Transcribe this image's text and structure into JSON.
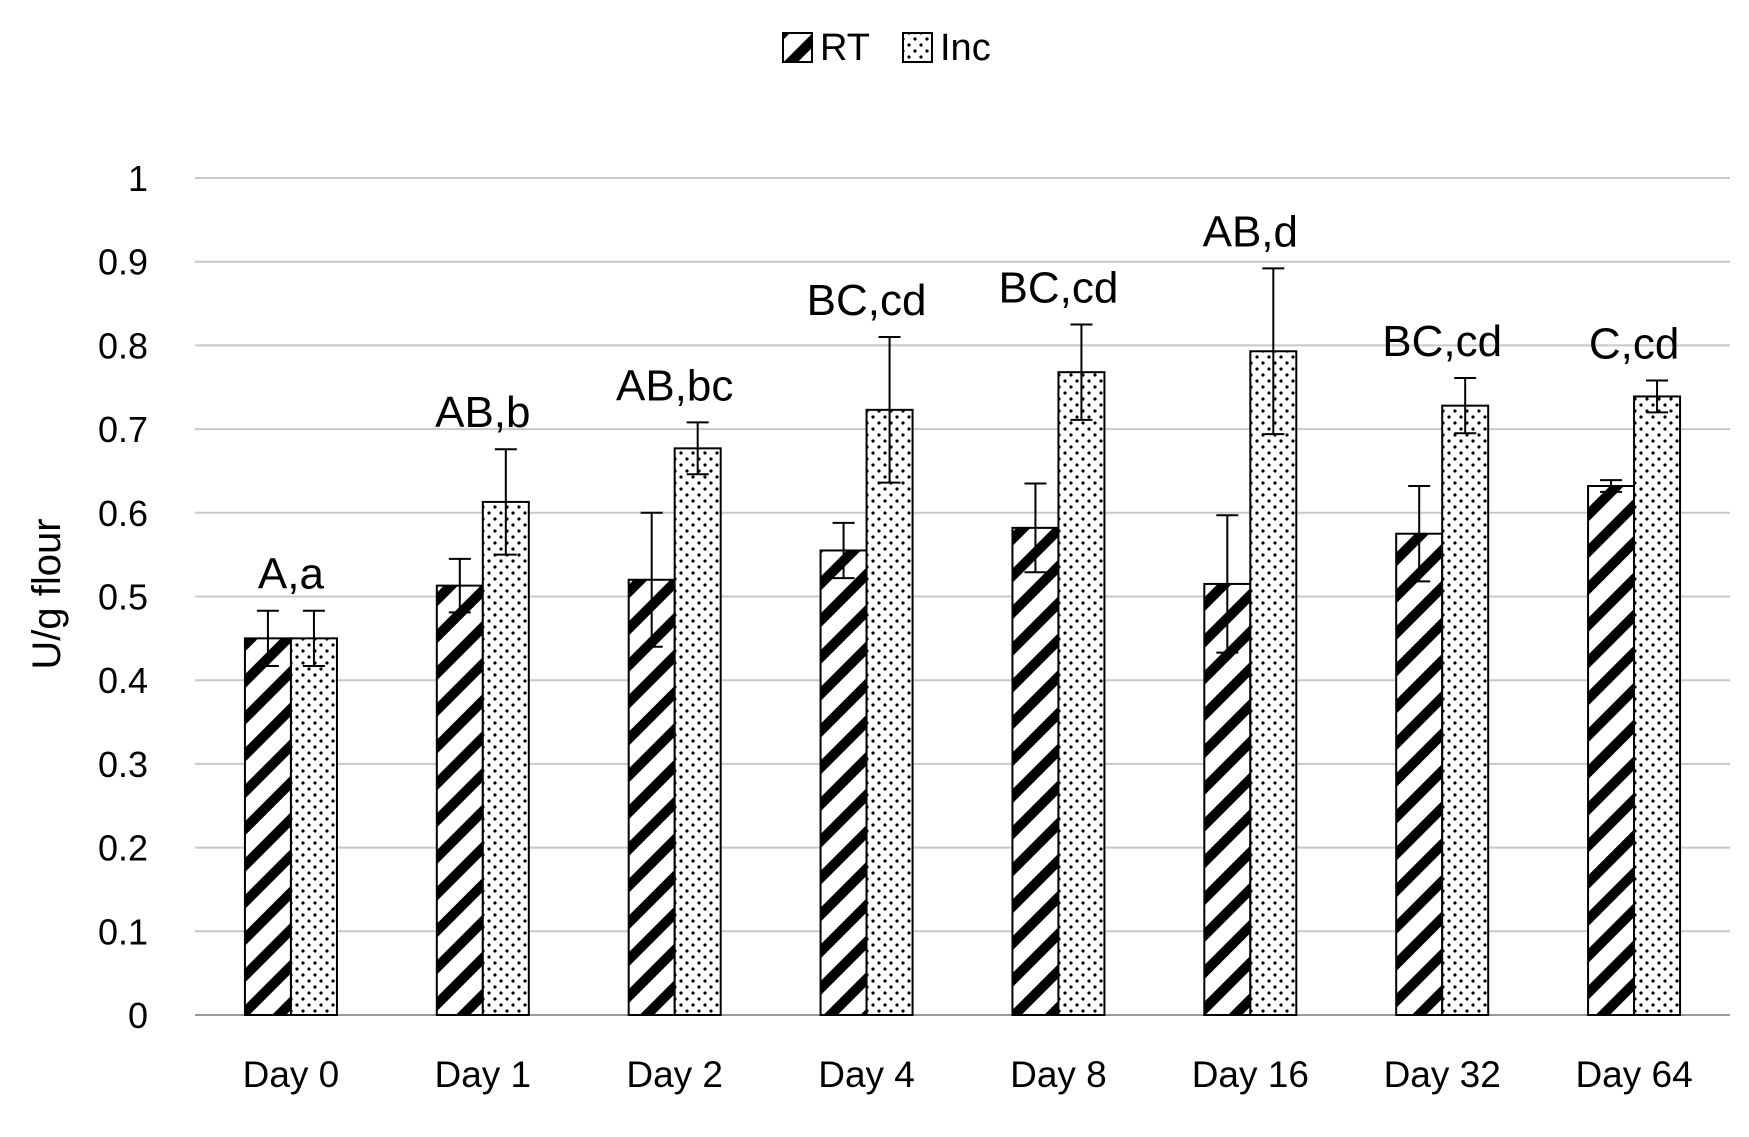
{
  "chart_data": {
    "type": "bar",
    "title": "",
    "xlabel": "",
    "ylabel": "U/g flour",
    "ylim": [
      0,
      1
    ],
    "yticks": [
      0,
      0.1,
      0.2,
      0.3,
      0.4,
      0.5,
      0.6,
      0.7,
      0.8,
      0.9,
      1
    ],
    "ytick_labels": [
      "0",
      "0.1",
      "0.2",
      "0.3",
      "0.4",
      "0.5",
      "0.6",
      "0.7",
      "0.8",
      "0.9",
      "1"
    ],
    "grid": true,
    "legend_position": "top-center",
    "categories": [
      "Day 0",
      "Day 1",
      "Day 2",
      "Day 4",
      "Day 8",
      "Day 16",
      "Day 32",
      "Day 64"
    ],
    "series": [
      {
        "name": "RT",
        "pattern": "diagonal-stripes",
        "values": [
          0.45,
          0.513,
          0.52,
          0.555,
          0.582,
          0.515,
          0.575,
          0.632
        ],
        "errors": [
          0.033,
          0.032,
          0.08,
          0.033,
          0.053,
          0.082,
          0.057,
          0.007
        ]
      },
      {
        "name": "Inc",
        "pattern": "dots",
        "values": [
          0.45,
          0.613,
          0.677,
          0.723,
          0.768,
          0.793,
          0.728,
          0.739
        ],
        "errors": [
          0.033,
          0.063,
          0.031,
          0.087,
          0.057,
          0.099,
          0.033,
          0.019
        ]
      }
    ],
    "annotations": [
      "A,a",
      "AB,b",
      "AB,bc",
      "BC,cd",
      "BC,cd",
      "AB,d",
      "BC,cd",
      "C,cd"
    ],
    "colors": {
      "grid": "#c8c8c8",
      "bar_stroke": "#000000",
      "bar_fill": "#ffffff",
      "pattern": "#000000"
    }
  }
}
